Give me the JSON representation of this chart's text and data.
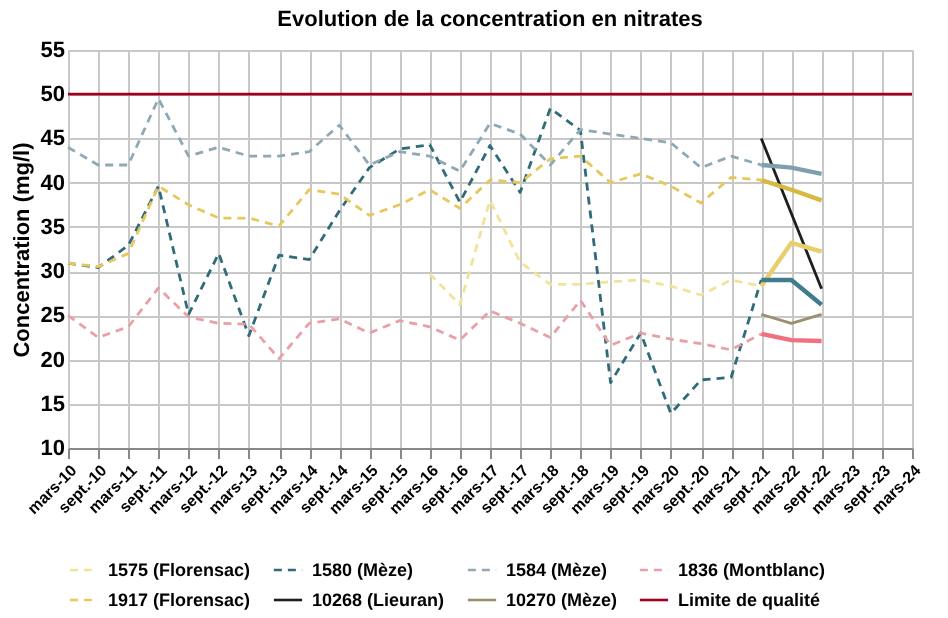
{
  "chart_data": {
    "type": "line",
    "title": "Evolution de la concentration en nitrates",
    "ylabel": "Concentration (mg/l)",
    "categories": [
      "mars-10",
      "sept.-10",
      "mars-11",
      "sept.-11",
      "mars-12",
      "sept.-12",
      "mars-13",
      "sept.-13",
      "mars-14",
      "sept.-14",
      "mars-15",
      "sept.-15",
      "mars-16",
      "sept.-16",
      "mars-17",
      "sept.-17",
      "mars-18",
      "sept.-18",
      "mars-19",
      "sept.-19",
      "mars-20",
      "sept.-20",
      "mars-21",
      "sept.-21",
      "mars-22",
      "sept.-22",
      "mars-23",
      "sept.-23",
      "mars-24"
    ],
    "ylim": [
      10,
      55
    ],
    "yticks": [
      10,
      15,
      20,
      25,
      30,
      35,
      40,
      45,
      50,
      55
    ],
    "grid": true,
    "legend": "bottom",
    "series": [
      {
        "name": "1575 (Florensac)",
        "color": "#f3e39a",
        "line_style": "dashed",
        "values": [
          null,
          null,
          null,
          null,
          null,
          null,
          null,
          null,
          null,
          null,
          null,
          null,
          29.7,
          26.2,
          38,
          31,
          28.5,
          28.5,
          28.8,
          29,
          28.3,
          27.3,
          29,
          28.3,
          null,
          null,
          null,
          null,
          null
        ]
      },
      {
        "name": "1580 (Mèze)",
        "color": "#2f6b78",
        "line_style": "dashed",
        "values": [
          30.9,
          30.4,
          32.9,
          39.6,
          25.1,
          32,
          22.7,
          31.8,
          31.3,
          36.8,
          41.7,
          43.8,
          44.3,
          37.8,
          44.2,
          38.9,
          48.4,
          45.9,
          17.4,
          23,
          13.9,
          17.7,
          18,
          29,
          null,
          null,
          null,
          null,
          null
        ]
      },
      {
        "name": "1584 (Mèze)",
        "color": "#8ea8b4",
        "line_style": "dashed",
        "values": [
          44,
          42,
          42,
          49.5,
          43,
          44,
          43,
          43,
          43.5,
          46.5,
          42,
          43.5,
          43,
          41.3,
          46.7,
          45.5,
          42,
          46,
          45.5,
          45,
          44.5,
          41.7,
          43,
          42,
          null,
          null,
          null,
          null,
          null
        ]
      },
      {
        "name": "1836 (Montblanc)",
        "color": "#e8a0a8",
        "line_style": "dashed",
        "values": [
          25,
          22.5,
          23.7,
          28.1,
          24.8,
          24.1,
          24,
          20.1,
          24.1,
          24.6,
          23,
          24.4,
          23.7,
          22.2,
          25.5,
          24.1,
          22.5,
          26.7,
          21.6,
          23,
          22.3,
          21.8,
          21.1,
          22.9,
          null,
          null,
          null,
          null,
          null
        ]
      },
      {
        "name": "1917 (Florensac)",
        "color": "#e6c85c",
        "line_style": "dashed",
        "values": [
          30.9,
          30.5,
          32,
          39.6,
          37.5,
          36,
          36,
          35.1,
          39.2,
          38.7,
          36.3,
          37.5,
          39.2,
          37.1,
          40.3,
          40,
          42.7,
          43,
          40,
          41,
          39.6,
          37.7,
          40.6,
          40.3,
          null,
          null,
          null,
          null,
          null
        ]
      },
      {
        "name": "10268 (Lieuran)",
        "color": "#1e1e1e",
        "line_style": "solid",
        "values": [
          null,
          null,
          null,
          null,
          null,
          null,
          null,
          null,
          null,
          null,
          null,
          null,
          null,
          null,
          null,
          null,
          null,
          null,
          null,
          null,
          null,
          null,
          null,
          45,
          null,
          28,
          null,
          null,
          null
        ]
      },
      {
        "name": "10270 (Mèze)",
        "color": "#9a8f6e",
        "line_style": "solid",
        "values": [
          null,
          null,
          null,
          null,
          null,
          null,
          null,
          null,
          null,
          null,
          null,
          null,
          null,
          null,
          null,
          null,
          null,
          null,
          null,
          null,
          null,
          null,
          null,
          25.1,
          24.1,
          25.1,
          null,
          null,
          null
        ]
      },
      {
        "name": "Limite de qualité",
        "color": "#a0001c",
        "line_style": "solid",
        "values": [
          50,
          50,
          50,
          50,
          50,
          50,
          50,
          50,
          50,
          50,
          50,
          50,
          50,
          50,
          50,
          50,
          50,
          50,
          50,
          50,
          50,
          50,
          50,
          50,
          50,
          50,
          50,
          50,
          50
        ]
      },
      {
        "color": "#e8cf6e",
        "line_style": "solid",
        "values": [
          null,
          null,
          null,
          null,
          null,
          null,
          null,
          null,
          null,
          null,
          null,
          null,
          null,
          null,
          null,
          null,
          null,
          null,
          null,
          null,
          null,
          null,
          null,
          28.3,
          33.2,
          32.2,
          null,
          null,
          null
        ]
      },
      {
        "color": "#3f7c8c",
        "line_style": "solid",
        "values": [
          null,
          null,
          null,
          null,
          null,
          null,
          null,
          null,
          null,
          null,
          null,
          null,
          null,
          null,
          null,
          null,
          null,
          null,
          null,
          null,
          null,
          null,
          null,
          29,
          29,
          26.2,
          null,
          null,
          null
        ]
      },
      {
        "color": "#7f9fb0",
        "line_style": "solid",
        "values": [
          null,
          null,
          null,
          null,
          null,
          null,
          null,
          null,
          null,
          null,
          null,
          null,
          null,
          null,
          null,
          null,
          null,
          null,
          null,
          null,
          null,
          null,
          null,
          42,
          41.7,
          41,
          null,
          null,
          null
        ]
      },
      {
        "color": "#f07080",
        "line_style": "solid",
        "values": [
          null,
          null,
          null,
          null,
          null,
          null,
          null,
          null,
          null,
          null,
          null,
          null,
          null,
          null,
          null,
          null,
          null,
          null,
          null,
          null,
          null,
          null,
          null,
          22.9,
          22.2,
          22.1,
          null,
          null,
          null
        ]
      },
      {
        "color": "#d8b840",
        "line_style": "solid",
        "values": [
          null,
          null,
          null,
          null,
          null,
          null,
          null,
          null,
          null,
          null,
          null,
          null,
          null,
          null,
          null,
          null,
          null,
          null,
          null,
          null,
          null,
          null,
          null,
          40.3,
          39.2,
          38,
          null,
          null,
          null
        ]
      }
    ]
  }
}
